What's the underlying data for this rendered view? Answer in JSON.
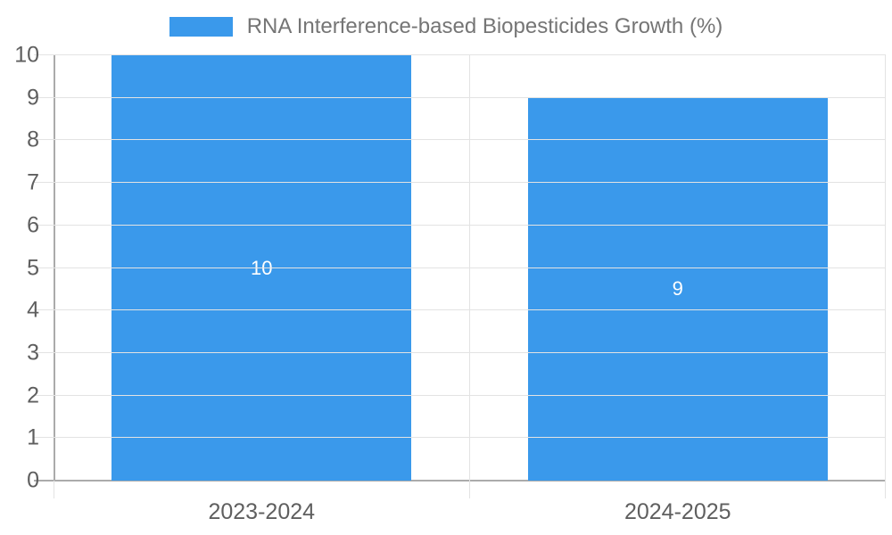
{
  "legend": {
    "label": "RNA Interference-based Biopesticides Growth (%)"
  },
  "chart_data": {
    "type": "bar",
    "title": "RNA Interference-based Biopesticides Growth (%)",
    "categories": [
      "2023-2024",
      "2024-2025"
    ],
    "series": [
      {
        "name": "RNA Interference-based Biopesticides Growth (%)",
        "values": [
          10,
          9
        ]
      }
    ],
    "values": [
      10,
      9
    ],
    "bar_value_labels": [
      "10",
      "9"
    ],
    "xlabel": "",
    "ylabel": "",
    "ylim": [
      0,
      10
    ],
    "ytick_step": 1,
    "yticks": [
      0,
      1,
      2,
      3,
      4,
      5,
      6,
      7,
      8,
      9,
      10
    ],
    "grid": "on",
    "legend_position": "top-center",
    "bar_width_fraction": 0.72
  },
  "colors": {
    "bar": "#3a99eb",
    "gridline": "#e3e3e3",
    "axis_line": "#ababab",
    "tick_text": "#5f5f5f",
    "x_label_text": "#5f5f5f",
    "legend_text": "#757575",
    "bar_label_text": "#ffffff",
    "background": "#ffffff"
  }
}
